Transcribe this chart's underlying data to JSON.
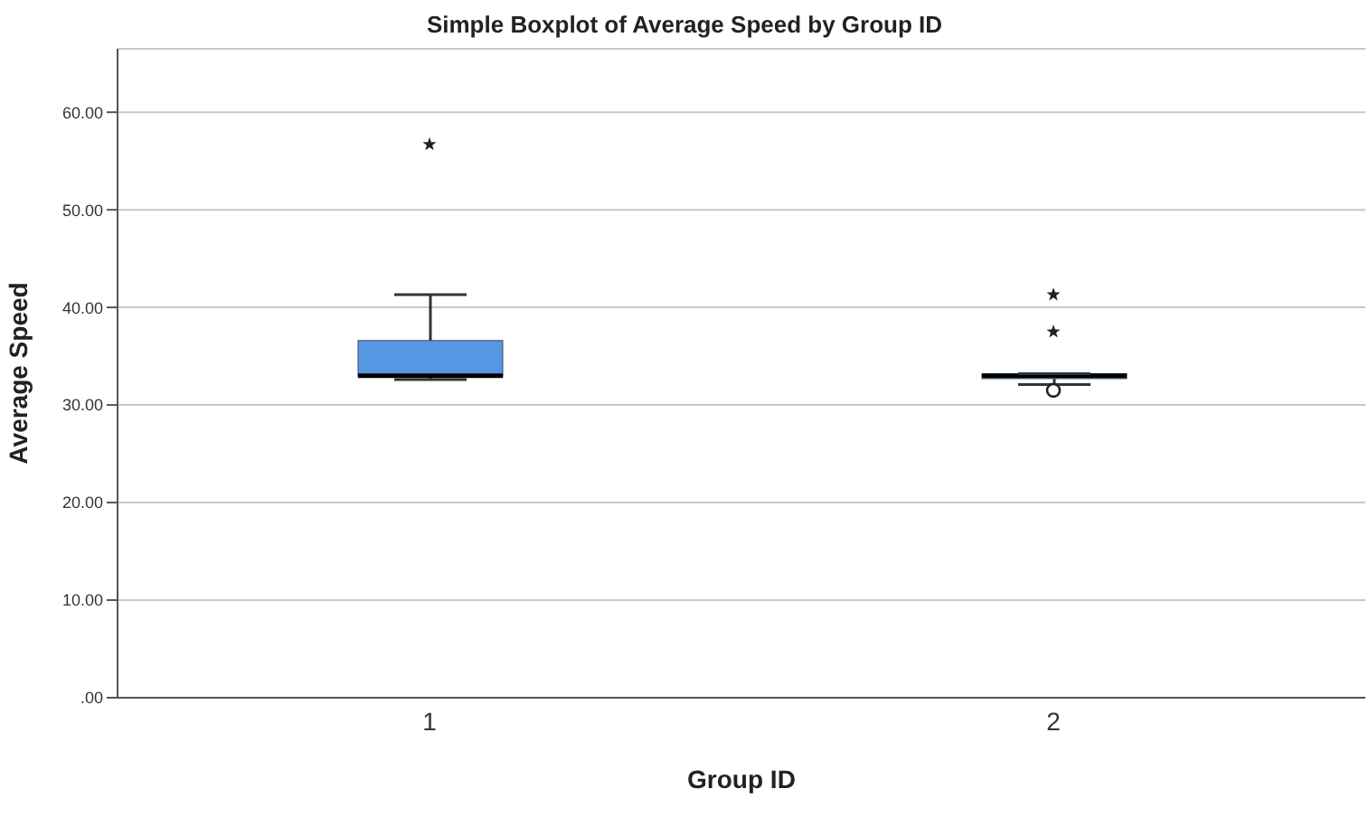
{
  "chart_data": {
    "type": "box",
    "title": "Simple Boxplot of Average Speed by Group ID",
    "xlabel": "Group ID",
    "ylabel": "Average Speed",
    "categories": [
      "1",
      "2"
    ],
    "color": "#5597e3",
    "boxes": [
      {
        "low": 32.6,
        "q1": 32.9,
        "median": 33.0,
        "q3": 36.6,
        "high": 41.3,
        "outliers": [
          56.7
        ]
      },
      {
        "low": 32.1,
        "q1": 32.7,
        "median": 33.0,
        "q3": 33.2,
        "high": 33.2,
        "outliers": [
          31.5,
          37.5,
          41.3
        ]
      }
    ],
    "ylim": [
      0,
      66.5
    ],
    "yticks": [
      {
        "value": 0,
        "label": ".00"
      },
      {
        "value": 10,
        "label": "10.00"
      },
      {
        "value": 20,
        "label": "20.00"
      },
      {
        "value": 30,
        "label": "30.00"
      },
      {
        "value": 40,
        "label": "40.00"
      },
      {
        "value": 50,
        "label": "50.00"
      },
      {
        "value": 60,
        "label": "60.00"
      }
    ],
    "grid": "y"
  }
}
